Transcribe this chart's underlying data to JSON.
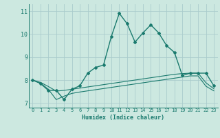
{
  "xlabel": "Humidex (Indice chaleur)",
  "bg_color": "#cce8e0",
  "grid_color": "#aacccc",
  "line_color": "#1a7a6e",
  "xlim": [
    -0.5,
    23.5
  ],
  "ylim": [
    6.8,
    11.3
  ],
  "yticks": [
    7,
    8,
    9,
    10,
    11
  ],
  "xticks": [
    0,
    1,
    2,
    3,
    4,
    5,
    6,
    7,
    8,
    9,
    10,
    11,
    12,
    13,
    14,
    15,
    16,
    17,
    18,
    19,
    20,
    21,
    22,
    23
  ],
  "series1_x": [
    0,
    1,
    2,
    3,
    4,
    5,
    6,
    7,
    8,
    9,
    10,
    11,
    12,
    13,
    14,
    15,
    16,
    17,
    18,
    19,
    20,
    21,
    22,
    23
  ],
  "series1_y": [
    8.0,
    7.85,
    7.55,
    7.55,
    7.15,
    7.6,
    7.75,
    8.3,
    8.55,
    8.65,
    9.9,
    10.9,
    10.45,
    9.65,
    10.05,
    10.4,
    10.05,
    9.5,
    9.2,
    8.2,
    8.3,
    8.3,
    8.3,
    7.75
  ],
  "series2_x": [
    0,
    1,
    2,
    3,
    4,
    5,
    6,
    7,
    8,
    9,
    10,
    11,
    12,
    13,
    14,
    15,
    16,
    17,
    18,
    19,
    20,
    21,
    22,
    23
  ],
  "series2_y": [
    8.0,
    7.9,
    7.72,
    7.52,
    7.55,
    7.6,
    7.65,
    7.7,
    7.75,
    7.8,
    7.85,
    7.9,
    7.95,
    8.0,
    8.05,
    8.1,
    8.15,
    8.2,
    8.25,
    8.28,
    8.3,
    8.3,
    7.88,
    7.62
  ],
  "series3_x": [
    0,
    1,
    2,
    3,
    4,
    5,
    6,
    7,
    8,
    9,
    10,
    11,
    12,
    13,
    14,
    15,
    16,
    17,
    18,
    19,
    20,
    21,
    22,
    23
  ],
  "series3_y": [
    8.0,
    7.87,
    7.6,
    7.15,
    7.3,
    7.42,
    7.48,
    7.53,
    7.58,
    7.63,
    7.68,
    7.73,
    7.78,
    7.83,
    7.88,
    7.93,
    7.98,
    8.03,
    8.08,
    8.13,
    8.18,
    8.18,
    7.73,
    7.53
  ]
}
